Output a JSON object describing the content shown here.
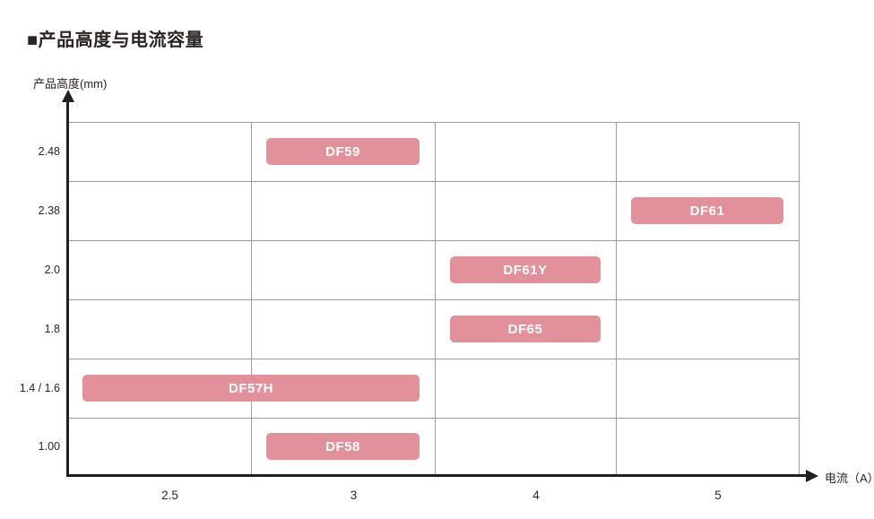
{
  "title": "■产品高度与电流容量",
  "axes": {
    "y_label": "产品高度(mm)",
    "x_label": "电流（A）"
  },
  "colors": {
    "bar_fill": "#e2919b",
    "bar_text": "#ffffff",
    "grid": "#9c9c9c",
    "axis": "#231f20",
    "text": "#2b2422"
  },
  "chart_data": {
    "type": "bar",
    "title": "产品高度与电流容量",
    "xlabel": "电流（A）",
    "ylabel": "产品高度(mm)",
    "x_ticks": [
      "2.5",
      "3",
      "4",
      "5"
    ],
    "y_ticks": [
      "2.48",
      "2.38",
      "2.0",
      "1.8",
      "1.4 / 1.6",
      "1.00"
    ],
    "grid": true,
    "legend": "none",
    "bars": [
      {
        "label": "DF59",
        "height_mm": "2.48",
        "row": 0,
        "col_start": 1,
        "col_end": 1,
        "current_A": "3"
      },
      {
        "label": "DF61",
        "height_mm": "2.38",
        "row": 1,
        "col_start": 3,
        "col_end": 3,
        "current_A": "5"
      },
      {
        "label": "DF61Y",
        "height_mm": "2.0",
        "row": 2,
        "col_start": 2,
        "col_end": 2,
        "current_A": "4"
      },
      {
        "label": "DF65",
        "height_mm": "1.8",
        "row": 3,
        "col_start": 2,
        "col_end": 2,
        "current_A": "4"
      },
      {
        "label": "DF57H",
        "height_mm": "1.4 / 1.6",
        "row": 4,
        "col_start": 0,
        "col_end": 1,
        "current_A": "2.5–3"
      },
      {
        "label": "DF58",
        "height_mm": "1.00",
        "row": 5,
        "col_start": 1,
        "col_end": 1,
        "current_A": "3"
      }
    ]
  }
}
